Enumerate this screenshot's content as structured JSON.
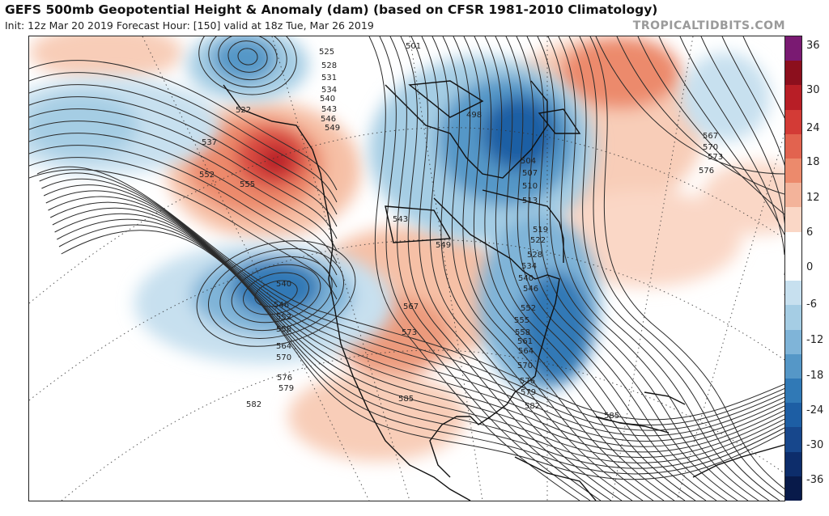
{
  "header": {
    "title": "GEFS 500mb Geopotential Height & Anomaly (dam) (based on CFSR 1981-2010 Climatology)",
    "subtitle": "Init: 12z Mar 20 2019   Forecast Hour: [150]   valid at 18z Tue, Mar 26 2019",
    "credit": "TROPICALTIDBITS.COM"
  },
  "colorbar": {
    "ticks": [
      "36",
      "30",
      "24",
      "18",
      "12",
      "6",
      "0",
      "-6",
      "-12",
      "-18",
      "-24",
      "-30",
      "-36"
    ],
    "colors": [
      "#7a1a72",
      "#8c0f1d",
      "#b81e26",
      "#d33b36",
      "#e2634f",
      "#ec8a6c",
      "#f3b39a",
      "#fad7c6",
      "#ffffff",
      "#ffffff",
      "#c7e0ef",
      "#a5cde4",
      "#7fb4d8",
      "#5597c7",
      "#3079b6",
      "#1d5ea4",
      "#17478c",
      "#0d2d6b",
      "#081a4a"
    ]
  },
  "map": {
    "contour_labels": [
      {
        "text": "501"
      },
      {
        "text": "498"
      },
      {
        "text": "504"
      },
      {
        "text": "507"
      },
      {
        "text": "510"
      },
      {
        "text": "513"
      },
      {
        "text": "519"
      },
      {
        "text": "522"
      },
      {
        "text": "522"
      },
      {
        "text": "525"
      },
      {
        "text": "528"
      },
      {
        "text": "528"
      },
      {
        "text": "531"
      },
      {
        "text": "534"
      },
      {
        "text": "534"
      },
      {
        "text": "537"
      },
      {
        "text": "540"
      },
      {
        "text": "540"
      },
      {
        "text": "540"
      },
      {
        "text": "543"
      },
      {
        "text": "543"
      },
      {
        "text": "546"
      },
      {
        "text": "546"
      },
      {
        "text": "546"
      },
      {
        "text": "549"
      },
      {
        "text": "549"
      },
      {
        "text": "552"
      },
      {
        "text": "552"
      },
      {
        "text": "552"
      },
      {
        "text": "555"
      },
      {
        "text": "555"
      },
      {
        "text": "558"
      },
      {
        "text": "558"
      },
      {
        "text": "561"
      },
      {
        "text": "564"
      },
      {
        "text": "564"
      },
      {
        "text": "567"
      },
      {
        "text": "567"
      },
      {
        "text": "570"
      },
      {
        "text": "570"
      },
      {
        "text": "570"
      },
      {
        "text": "573"
      },
      {
        "text": "573"
      },
      {
        "text": "576"
      },
      {
        "text": "576"
      },
      {
        "text": "576"
      },
      {
        "text": "579"
      },
      {
        "text": "579"
      },
      {
        "text": "582"
      },
      {
        "text": "582"
      },
      {
        "text": "585"
      },
      {
        "text": "585"
      }
    ]
  }
}
